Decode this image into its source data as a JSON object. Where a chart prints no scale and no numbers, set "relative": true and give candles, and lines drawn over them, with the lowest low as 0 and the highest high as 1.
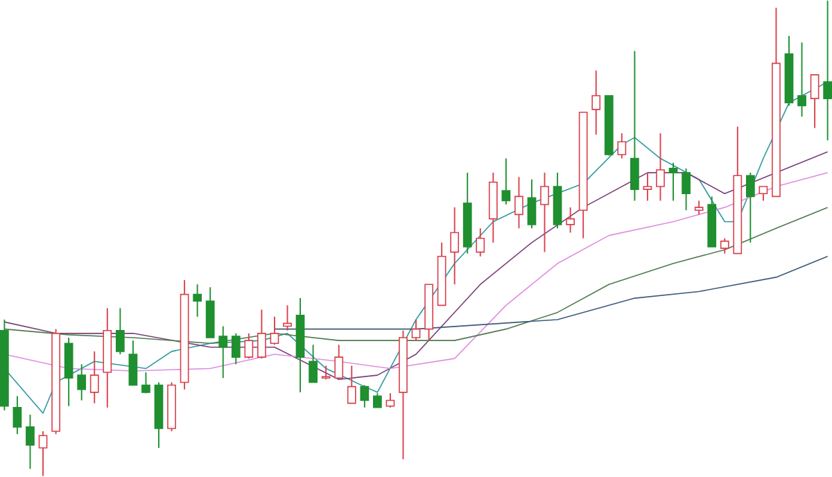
{
  "chart_data": {
    "type": "candlestick",
    "relative": true,
    "categories": [
      null,
      null,
      null,
      null,
      null,
      null,
      null,
      null,
      null,
      null,
      null,
      null,
      null,
      null,
      null,
      null,
      null,
      null,
      null,
      null,
      null,
      null,
      null,
      null,
      null,
      null,
      null,
      null,
      null,
      null,
      null,
      null,
      null,
      null,
      null,
      null,
      null,
      null,
      null,
      null,
      null,
      null,
      null,
      null,
      null,
      null,
      null,
      null,
      null,
      null,
      null,
      null,
      null,
      null,
      null,
      null,
      null,
      null,
      null,
      null,
      null,
      null,
      null,
      null,
      null
    ],
    "ohlc": [
      [
        0.306,
        0.329,
        0.138,
        0.147
      ],
      [
        0.144,
        0.168,
        0.088,
        0.103
      ],
      [
        0.103,
        0.129,
        0.015,
        0.065
      ],
      [
        0.059,
        0.094,
        0,
        0.085
      ],
      [
        0.094,
        0.309,
        0.088,
        0.3
      ],
      [
        0.279,
        0.291,
        0.147,
        0.206
      ],
      [
        0.212,
        0.235,
        0.159,
        0.182
      ],
      [
        0.176,
        0.262,
        0.153,
        0.212
      ],
      [
        0.218,
        0.353,
        0.144,
        0.306
      ],
      [
        0.306,
        0.353,
        0.256,
        0.262
      ],
      [
        0.256,
        0.285,
        0.191,
        0.191
      ],
      [
        0.191,
        0.218,
        0.174,
        0.176
      ],
      [
        0.191,
        0.197,
        0.059,
        0.1
      ],
      [
        0.1,
        0.197,
        0.094,
        0.191
      ],
      [
        0.197,
        0.412,
        0.182,
        0.382
      ],
      [
        0.382,
        0.403,
        0.335,
        0.368
      ],
      [
        0.368,
        0.397,
        0.291,
        0.291
      ],
      [
        0.294,
        0.315,
        0.206,
        0.271
      ],
      [
        0.294,
        0.3,
        0.235,
        0.25
      ],
      [
        0.25,
        0.3,
        0.247,
        0.285
      ],
      [
        0.25,
        0.35,
        0.247,
        0.3
      ],
      [
        0.279,
        0.335,
        0.276,
        0.3
      ],
      [
        0.315,
        0.359,
        0.306,
        0.321
      ],
      [
        0.338,
        0.374,
        0.176,
        0.25
      ],
      [
        0.241,
        0.276,
        0.197,
        0.197
      ],
      [
        0.206,
        0.232,
        0.203,
        0.209
      ],
      [
        0.206,
        0.276,
        0.203,
        0.25
      ],
      [
        0.153,
        0.232,
        0.153,
        0.188
      ],
      [
        0.188,
        0.191,
        0.144,
        0.159
      ],
      [
        0.168,
        0.174,
        0.144,
        0.144
      ],
      [
        0.147,
        0.174,
        0.144,
        0.159
      ],
      [
        0.176,
        0.306,
        0.035,
        0.291
      ],
      [
        0.291,
        0.329,
        0.285,
        0.309
      ],
      [
        0.309,
        0.403,
        0.285,
        0.403
      ],
      [
        0.359,
        0.491,
        0.359,
        0.462
      ],
      [
        0.471,
        0.565,
        0.403,
        0.512
      ],
      [
        0.574,
        0.638,
        0.468,
        0.482
      ],
      [
        0.471,
        0.521,
        0.462,
        0.5
      ],
      [
        0.541,
        0.638,
        0.491,
        0.618
      ],
      [
        0.6,
        0.668,
        0.571,
        0.579
      ],
      [
        0.55,
        0.629,
        0.521,
        0.588
      ],
      [
        0.585,
        0.624,
        0.521,
        0.529
      ],
      [
        0.571,
        0.638,
        0.471,
        0.609
      ],
      [
        0.609,
        0.638,
        0.521,
        0.529
      ],
      [
        0.529,
        0.565,
        0.512,
        0.541
      ],
      [
        0.559,
        0.765,
        0.5,
        0.765
      ],
      [
        0.771,
        0.853,
        0.718,
        0.8
      ],
      [
        0.8,
        0.8,
        0.674,
        0.676
      ],
      [
        0.676,
        0.721,
        0.668,
        0.703
      ],
      [
        0.668,
        0.894,
        0.579,
        0.603
      ],
      [
        0.603,
        0.638,
        0.579,
        0.609
      ],
      [
        0.609,
        0.721,
        0.579,
        0.644
      ],
      [
        0.647,
        0.659,
        0.579,
        0.638
      ],
      [
        0.638,
        0.647,
        0.559,
        0.594
      ],
      [
        0.559,
        0.579,
        0.55,
        0.565
      ],
      [
        0.571,
        0.588,
        0.482,
        0.482
      ],
      [
        0.479,
        0.5,
        0.468,
        0.494
      ],
      [
        0.468,
        0.735,
        0.468,
        0.632
      ],
      [
        0.632,
        0.638,
        0.491,
        0.588
      ],
      [
        0.594,
        0.609,
        0.579,
        0.609
      ],
      [
        0.588,
        0.985,
        0.588,
        0.868
      ],
      [
        0.888,
        0.926,
        0.779,
        0.785
      ],
      [
        0.8,
        0.912,
        0.756,
        0.779
      ],
      [
        0.794,
        0.844,
        0.732,
        0.844
      ],
      [
        0.829,
        1,
        0.706,
        0.794
      ]
    ],
    "colors": [
      "#1f8f2f",
      "#1f8f2f",
      "#1f8f2f",
      "#d9404c",
      "#d9404c",
      "#1f8f2f",
      "#1f8f2f",
      "#d9404c",
      "#d9404c",
      "#1f8f2f",
      "#1f8f2f",
      "#1f8f2f",
      "#1f8f2f",
      "#d9404c",
      "#d9404c",
      "#1f8f2f",
      "#1f8f2f",
      "#1f8f2f",
      "#1f8f2f",
      "#d9404c",
      "#d9404c",
      "#d9404c",
      "#d9404c",
      "#1f8f2f",
      "#1f8f2f",
      "#d9404c",
      "#d9404c",
      "#d9404c",
      "#1f8f2f",
      "#1f8f2f",
      "#d9404c",
      "#d9404c",
      "#d9404c",
      "#d9404c",
      "#d9404c",
      "#d9404c",
      "#1f8f2f",
      "#d9404c",
      "#d9404c",
      "#1f8f2f",
      "#d9404c",
      "#1f8f2f",
      "#d9404c",
      "#1f8f2f",
      "#d9404c",
      "#d9404c",
      "#d9404c",
      "#1f8f2f",
      "#d9404c",
      "#1f8f2f",
      "#d9404c",
      "#d9404c",
      "#1f8f2f",
      "#1f8f2f",
      "#d9404c",
      "#1f8f2f",
      "#d9404c",
      "#d9404c",
      "#1f8f2f",
      "#d9404c",
      "#d9404c",
      "#1f8f2f",
      "#1f8f2f",
      "#d9404c",
      "#1f8f2f"
    ],
    "series": [
      {
        "type": "line",
        "color": "#2e9aa0",
        "values": [
          0.226,
          null,
          null,
          0.132,
          0.197,
          null,
          null,
          0.241,
          null,
          null,
          null,
          0.226,
          null,
          0.262,
          null,
          null,
          0.279,
          null,
          null,
          null,
          0.285,
          null,
          0.3,
          null,
          null,
          0.226,
          null,
          null,
          0.188,
          0.176,
          null,
          null,
          0.329,
          null,
          null,
          0.447,
          null,
          null,
          0.535,
          null,
          null,
          0.574,
          null,
          null,
          null,
          0.615,
          null,
          null,
          0.697,
          0.712,
          null,
          0.668,
          null,
          null,
          0.624,
          null,
          0.535,
          0.535,
          null,
          0.668,
          null,
          0.785,
          null,
          null,
          0.829
        ]
      },
      {
        "type": "line",
        "color": "#7a3f7a",
        "values": [
          0.324,
          null,
          null,
          null,
          0.3,
          null,
          null,
          null,
          null,
          null,
          0.3,
          null,
          null,
          null,
          null,
          null,
          0.271,
          null,
          null,
          null,
          null,
          0.271,
          null,
          null,
          null,
          null,
          0.203,
          null,
          null,
          0.212,
          null,
          null,
          0.256,
          null,
          null,
          null,
          null,
          0.403,
          null,
          null,
          null,
          0.491,
          null,
          null,
          null,
          0.565,
          null,
          null,
          null,
          null,
          0.638,
          null,
          null,
          0.638,
          null,
          null,
          0.594,
          null,
          null,
          null,
          0.638,
          null,
          null,
          null,
          0.682
        ]
      },
      {
        "type": "line",
        "color": "#e08ee0",
        "values": [
          0.256,
          null,
          null,
          null,
          null,
          0.226,
          null,
          null,
          null,
          null,
          0.221,
          null,
          null,
          null,
          null,
          null,
          0.226,
          null,
          null,
          null,
          null,
          0.256,
          null,
          null,
          null,
          null,
          0.241,
          null,
          null,
          null,
          0.226,
          null,
          null,
          null,
          null,
          0.247,
          null,
          null,
          null,
          0.359,
          null,
          null,
          null,
          0.447,
          null,
          null,
          null,
          0.506,
          null,
          null,
          null,
          null,
          0.535,
          null,
          null,
          null,
          0.565,
          null,
          null,
          null,
          0.609,
          null,
          null,
          null,
          0.638
        ]
      },
      {
        "type": "line",
        "color": "#4f7a4f",
        "values": [
          0.309,
          null,
          null,
          null,
          null,
          0.297,
          null,
          null,
          null,
          null,
          0.291,
          null,
          null,
          null,
          null,
          null,
          0.279,
          null,
          null,
          null,
          null,
          0.3,
          null,
          null,
          null,
          null,
          0.285,
          null,
          null,
          null,
          0.285,
          null,
          null,
          null,
          null,
          0.285,
          null,
          null,
          null,
          0.309,
          null,
          null,
          null,
          0.344,
          null,
          null,
          null,
          0.403,
          null,
          null,
          null,
          null,
          0.447,
          null,
          null,
          null,
          0.476,
          null,
          null,
          null,
          0.521,
          null,
          null,
          null,
          0.565
        ]
      },
      {
        "type": "line",
        "color": "#3d5a7a",
        "values": [
          null,
          null,
          null,
          null,
          null,
          null,
          null,
          null,
          null,
          null,
          null,
          null,
          null,
          null,
          null,
          null,
          null,
          null,
          null,
          null,
          null,
          0.309,
          null,
          null,
          null,
          null,
          null,
          null,
          null,
          null,
          null,
          null,
          0.309,
          null,
          null,
          null,
          null,
          null,
          null,
          null,
          null,
          null,
          null,
          0.329,
          null,
          null,
          null,
          null,
          null,
          0.374,
          null,
          null,
          null,
          null,
          0.388,
          null,
          null,
          null,
          null,
          null,
          0.418,
          null,
          null,
          null,
          0.462
        ]
      }
    ]
  }
}
